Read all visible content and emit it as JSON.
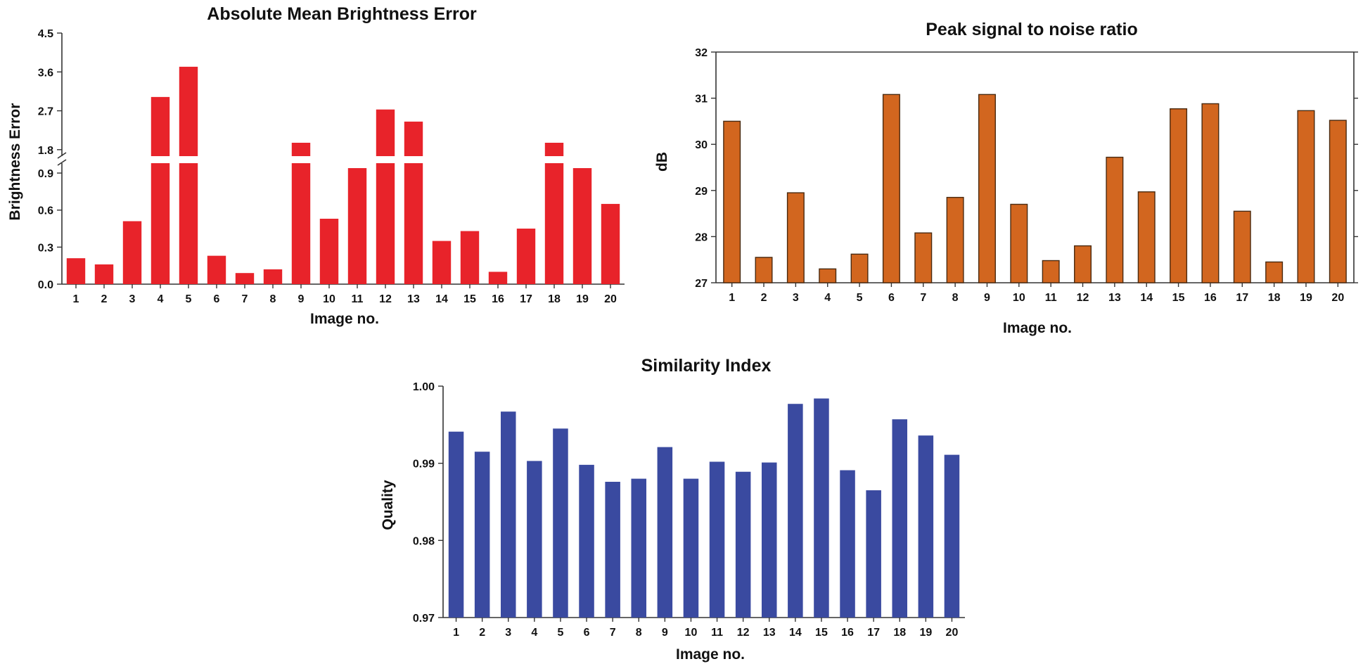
{
  "chart_data": [
    {
      "type": "bar",
      "title": "Absolute Mean Brightness Error",
      "xlabel": "Image no.",
      "ylabel": "Brightness Error",
      "color": "#e8232a",
      "categories": [
        "1",
        "2",
        "3",
        "4",
        "5",
        "6",
        "7",
        "8",
        "9",
        "10",
        "11",
        "12",
        "13",
        "14",
        "15",
        "16",
        "17",
        "18",
        "19",
        "20"
      ],
      "values": [
        0.21,
        0.16,
        0.51,
        3.02,
        3.72,
        0.23,
        0.09,
        0.12,
        1.96,
        0.53,
        0.94,
        2.73,
        2.45,
        0.35,
        0.43,
        0.1,
        0.45,
        1.96,
        0.94,
        0.65
      ],
      "axis_break": true,
      "lower_range": [
        0.0,
        0.98
      ],
      "upper_range": [
        1.65,
        4.5
      ],
      "lower_ticks": [
        "0.0",
        "0.3",
        "0.6",
        "0.9"
      ],
      "upper_ticks": [
        "1.8",
        "2.7",
        "3.6",
        "4.5"
      ]
    },
    {
      "type": "bar",
      "title": "Peak signal to noise ratio",
      "xlabel": "Image no.",
      "ylabel": "dB",
      "color": "#d2661f",
      "categories": [
        "1",
        "2",
        "3",
        "4",
        "5",
        "6",
        "7",
        "8",
        "9",
        "10",
        "11",
        "12",
        "13",
        "14",
        "15",
        "16",
        "17",
        "18",
        "19",
        "20"
      ],
      "values": [
        30.5,
        27.55,
        28.95,
        27.3,
        27.62,
        31.08,
        28.08,
        28.85,
        31.08,
        28.7,
        27.48,
        27.8,
        29.72,
        28.97,
        30.77,
        30.88,
        28.55,
        27.45,
        30.73,
        30.52
      ],
      "ylim": [
        27,
        32
      ],
      "yticks": [
        "27",
        "28",
        "29",
        "30",
        "31",
        "32"
      ]
    },
    {
      "type": "bar",
      "title": "Similarity Index",
      "xlabel": "Image no.",
      "ylabel": "Quality",
      "color": "#3a4aa0",
      "categories": [
        "1",
        "2",
        "3",
        "4",
        "5",
        "6",
        "7",
        "8",
        "9",
        "10",
        "11",
        "12",
        "13",
        "14",
        "15",
        "16",
        "17",
        "18",
        "19",
        "20"
      ],
      "values": [
        0.9941,
        0.9915,
        0.9967,
        0.9903,
        0.9945,
        0.9898,
        0.9876,
        0.988,
        0.9921,
        0.988,
        0.9902,
        0.9889,
        0.9901,
        0.9977,
        0.9984,
        0.9891,
        0.9865,
        0.9957,
        0.9936,
        0.9911
      ],
      "ylim": [
        0.97,
        1.0
      ],
      "yticks": [
        "0.97",
        "0.98",
        "0.99",
        "1.00"
      ]
    }
  ]
}
